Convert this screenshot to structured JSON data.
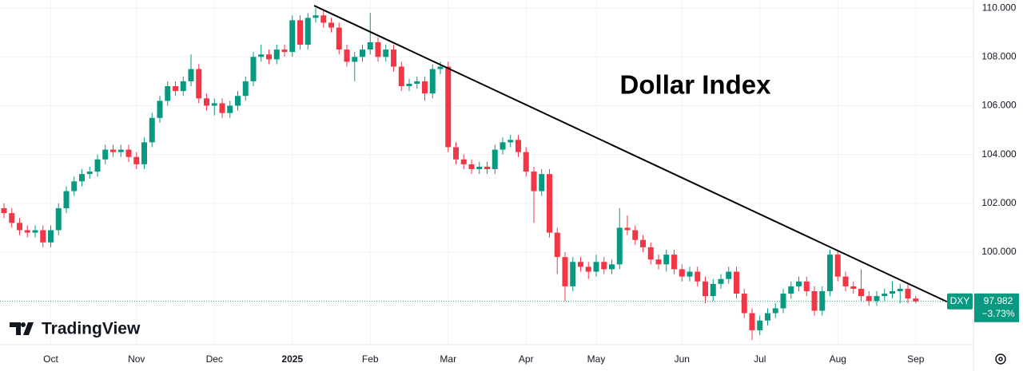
{
  "chart_data": {
    "type": "candlestick",
    "title": "Dollar Index",
    "symbol": "DXY",
    "brand": "TradingView",
    "up_color": "#089981",
    "down_color": "#f23645",
    "grid": true,
    "categories": [
      null,
      null,
      null,
      null,
      null,
      null,
      "Oct",
      null,
      null,
      null,
      null,
      null,
      null,
      null,
      null,
      null,
      null,
      "Nov",
      null,
      null,
      null,
      null,
      null,
      null,
      null,
      null,
      null,
      "Dec",
      null,
      null,
      null,
      null,
      null,
      null,
      null,
      null,
      null,
      "2025",
      null,
      null,
      null,
      null,
      null,
      null,
      null,
      null,
      null,
      "Feb",
      null,
      null,
      null,
      null,
      null,
      null,
      null,
      null,
      null,
      "Mar",
      null,
      null,
      null,
      null,
      null,
      null,
      null,
      null,
      null,
      "Apr",
      null,
      null,
      null,
      null,
      null,
      null,
      null,
      null,
      "May",
      null,
      null,
      null,
      null,
      null,
      null,
      null,
      null,
      null,
      null,
      "Jun",
      null,
      null,
      null,
      null,
      null,
      null,
      null,
      null,
      null,
      "Jul",
      null,
      null,
      null,
      null,
      null,
      null,
      null,
      null,
      null,
      "Aug",
      null,
      null,
      null,
      null,
      null,
      null,
      null,
      null,
      null,
      "Sep"
    ],
    "open": [
      101.8,
      101.6,
      101.2,
      100.9,
      100.8,
      100.9,
      100.4,
      100.9,
      101.8,
      102.5,
      102.9,
      103.2,
      103.3,
      103.8,
      104.2,
      104.1,
      104.2,
      103.9,
      103.6,
      104.5,
      105.5,
      106.2,
      106.8,
      106.6,
      107.0,
      107.5,
      106.3,
      106.0,
      106.1,
      105.7,
      106.0,
      106.4,
      107.0,
      108.0,
      108.1,
      107.9,
      108.3,
      108.2,
      109.5,
      108.5,
      109.6,
      109.7,
      109.4,
      109.2,
      108.3,
      107.8,
      108.0,
      108.3,
      108.6,
      108.0,
      108.3,
      107.6,
      106.8,
      106.9,
      107.0,
      106.5,
      107.5,
      107.6,
      104.3,
      103.8,
      103.6,
      103.4,
      103.5,
      103.4,
      104.2,
      104.5,
      104.6,
      104.1,
      103.3,
      102.5,
      103.2,
      100.8,
      99.8,
      98.6,
      99.6,
      99.4,
      99.2,
      99.6,
      99.3,
      99.5,
      101.0,
      100.9,
      100.5,
      100.2,
      99.7,
      99.5,
      99.9,
      99.3,
      99.0,
      99.2,
      98.8,
      98.2,
      98.7,
      98.9,
      99.2,
      98.3,
      97.5,
      96.8,
      97.2,
      97.5,
      97.7,
      98.3,
      98.6,
      98.8,
      98.4,
      97.6,
      98.4,
      99.9,
      99.0,
      98.6,
      98.5,
      98.2,
      98.0,
      98.2,
      98.3,
      98.4,
      98.5,
      98.1
    ],
    "high": [
      102.0,
      101.8,
      101.4,
      101.1,
      101.1,
      101.1,
      101.1,
      102.0,
      102.7,
      103.1,
      103.4,
      103.5,
      104.0,
      104.4,
      104.4,
      104.4,
      104.4,
      104.1,
      104.7,
      105.7,
      106.4,
      107.0,
      107.0,
      107.2,
      108.1,
      107.7,
      106.5,
      106.3,
      106.3,
      106.2,
      106.6,
      107.2,
      108.2,
      108.5,
      108.3,
      108.5,
      108.5,
      109.7,
      109.7,
      109.8,
      110.0,
      109.9,
      109.6,
      109.4,
      108.5,
      108.2,
      108.5,
      109.8,
      108.8,
      108.5,
      108.5,
      107.8,
      107.1,
      107.2,
      107.2,
      107.7,
      107.8,
      107.8,
      104.5,
      104.0,
      103.8,
      103.7,
      103.7,
      104.4,
      104.7,
      104.8,
      104.8,
      104.3,
      103.5,
      103.4,
      103.4,
      101.0,
      100.0,
      99.8,
      99.8,
      99.6,
      99.9,
      99.8,
      99.7,
      101.8,
      101.5,
      101.1,
      100.7,
      100.4,
      99.9,
      100.1,
      100.1,
      99.5,
      99.4,
      99.4,
      99.0,
      98.9,
      99.1,
      99.4,
      99.4,
      98.5,
      97.7,
      97.4,
      97.7,
      97.9,
      98.5,
      98.8,
      99.0,
      99.0,
      98.6,
      98.6,
      100.1,
      100.1,
      99.2,
      98.8,
      99.3,
      98.4,
      98.4,
      98.5,
      98.8,
      98.7,
      98.7,
      98.2
    ],
    "low": [
      101.4,
      101.0,
      100.7,
      100.6,
      100.6,
      100.2,
      100.2,
      100.7,
      101.6,
      102.3,
      102.7,
      103.0,
      103.1,
      103.6,
      103.9,
      103.9,
      103.7,
      103.4,
      103.4,
      104.3,
      105.3,
      106.0,
      106.4,
      106.4,
      106.8,
      106.1,
      105.8,
      105.6,
      105.5,
      105.5,
      105.8,
      106.2,
      106.8,
      107.8,
      107.7,
      107.7,
      108.0,
      108.0,
      108.3,
      108.3,
      109.4,
      109.2,
      109.0,
      108.1,
      107.6,
      107.0,
      107.8,
      108.1,
      107.8,
      107.8,
      107.4,
      106.6,
      106.6,
      106.7,
      106.2,
      106.3,
      107.3,
      104.1,
      103.6,
      103.4,
      103.2,
      103.2,
      103.2,
      103.2,
      104.0,
      104.3,
      103.9,
      103.1,
      101.2,
      102.3,
      100.6,
      99.1,
      98.0,
      98.4,
      99.2,
      98.9,
      99.0,
      99.1,
      99.1,
      99.3,
      100.7,
      100.3,
      100.0,
      99.5,
      99.3,
      99.2,
      99.1,
      98.8,
      98.8,
      98.6,
      97.9,
      98.0,
      98.5,
      98.7,
      98.1,
      97.3,
      96.4,
      96.6,
      97.0,
      97.3,
      97.5,
      98.1,
      98.4,
      98.2,
      97.4,
      97.4,
      98.2,
      98.8,
      98.4,
      98.3,
      98.0,
      97.8,
      97.8,
      98.0,
      98.1,
      97.9,
      97.9,
      97.9
    ],
    "close": [
      101.6,
      101.2,
      100.9,
      100.8,
      100.9,
      100.4,
      100.9,
      101.8,
      102.5,
      102.9,
      103.2,
      103.3,
      103.8,
      104.2,
      104.1,
      104.2,
      103.9,
      103.6,
      104.5,
      105.5,
      106.2,
      106.8,
      106.6,
      107.0,
      107.5,
      106.3,
      106.0,
      106.1,
      105.7,
      106.0,
      106.4,
      107.0,
      108.0,
      108.1,
      107.9,
      108.3,
      108.2,
      109.5,
      108.5,
      109.6,
      109.7,
      109.4,
      109.2,
      108.3,
      107.8,
      108.0,
      108.3,
      108.6,
      108.0,
      108.3,
      107.6,
      106.8,
      106.9,
      107.0,
      106.5,
      107.5,
      107.6,
      104.3,
      103.8,
      103.6,
      103.4,
      103.5,
      103.4,
      104.2,
      104.5,
      104.6,
      104.1,
      103.3,
      102.5,
      103.2,
      100.8,
      99.8,
      98.6,
      99.6,
      99.4,
      99.2,
      99.6,
      99.3,
      99.5,
      101.0,
      100.9,
      100.5,
      100.2,
      99.7,
      99.5,
      99.9,
      99.3,
      99.0,
      99.2,
      98.8,
      98.2,
      98.7,
      98.9,
      99.2,
      98.3,
      97.5,
      96.8,
      97.2,
      97.5,
      97.7,
      98.3,
      98.6,
      98.8,
      98.4,
      97.6,
      98.4,
      99.9,
      99.0,
      98.6,
      98.5,
      98.2,
      98.0,
      98.2,
      98.3,
      98.4,
      98.5,
      98.1,
      97.982
    ],
    "change": {
      "value": -3.73,
      "label": "−3.73%"
    },
    "trendline": {
      "x": [
        39.8,
        121.0
      ],
      "y": [
        110.1,
        97.97
      ]
    },
    "ylim": [
      96.21,
      110.33
    ],
    "yticks": [
      {
        "value": 100,
        "label": "100.000"
      },
      {
        "value": 102,
        "label": "102.000"
      },
      {
        "value": 104,
        "label": "104.000"
      },
      {
        "value": 106,
        "label": "106.000"
      },
      {
        "value": 108,
        "label": "108.000"
      },
      {
        "value": 110,
        "label": "110.000"
      }
    ]
  }
}
